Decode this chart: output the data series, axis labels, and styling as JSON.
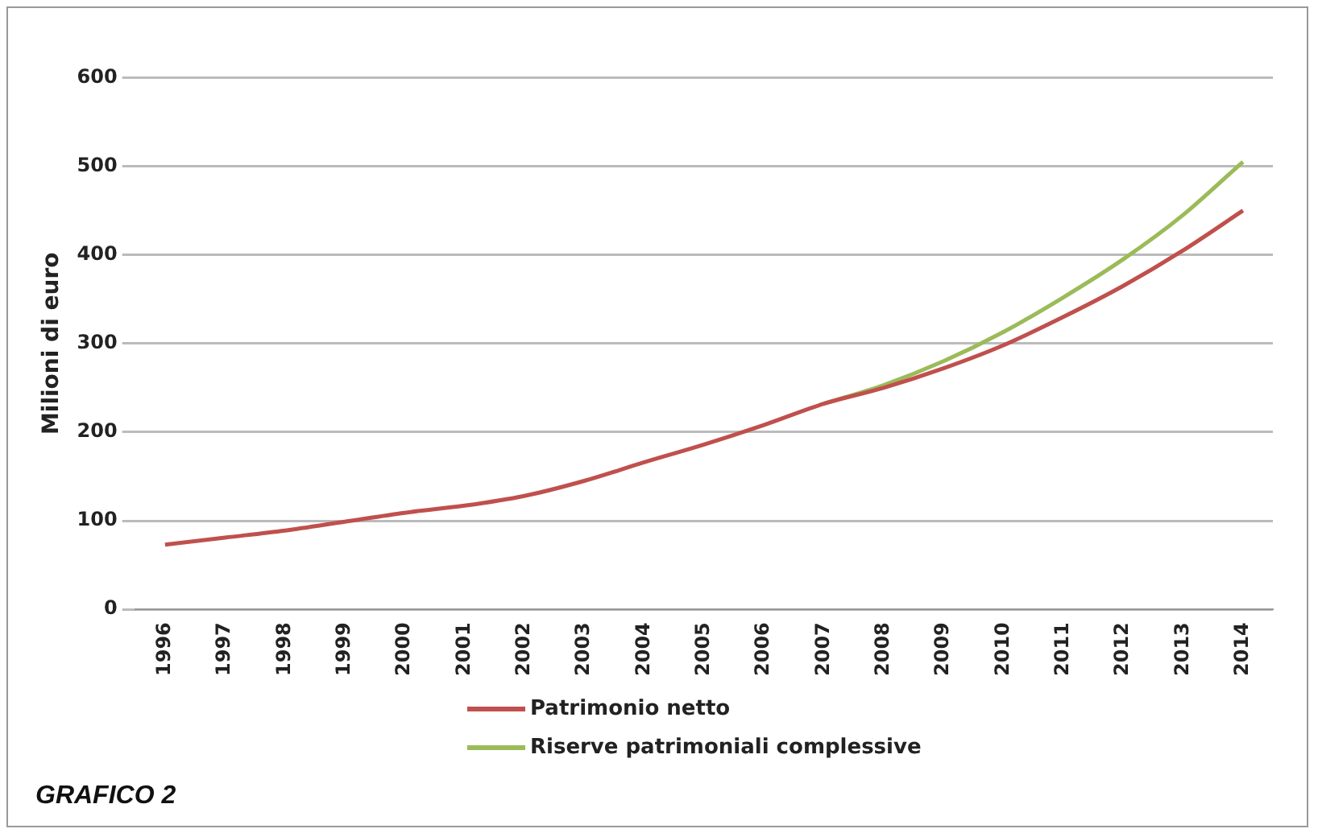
{
  "chart_data": {
    "type": "line",
    "ylabel": "Milioni di euro",
    "categories": [
      "1996",
      "1997",
      "1998",
      "1999",
      "2000",
      "2001",
      "2002",
      "2003",
      "2004",
      "2005",
      "2006",
      "2007",
      "2008",
      "2009",
      "2010",
      "2011",
      "2012",
      "2013",
      "2014"
    ],
    "series": [
      {
        "name": "Patrimonio netto",
        "color": "#c0504d",
        "values": [
          73,
          81,
          89,
          99,
          109,
          117,
          128,
          145,
          166,
          186,
          208,
          232,
          250,
          272,
          298,
          330,
          365,
          405,
          450
        ]
      },
      {
        "name": "Riserve patrimoniali complessive",
        "color": "#9bbb59",
        "values": [
          null,
          null,
          null,
          null,
          null,
          null,
          null,
          null,
          null,
          null,
          null,
          232,
          253,
          280,
          313,
          352,
          395,
          445,
          505
        ]
      }
    ],
    "ylim": [
      0,
      600
    ],
    "yticks": [
      0,
      100,
      200,
      300,
      400,
      500,
      600
    ],
    "grid": "y",
    "legend": "bottom",
    "marker": "none",
    "line_style": "solid",
    "annotations": [
      "GRAFICO 2"
    ]
  }
}
